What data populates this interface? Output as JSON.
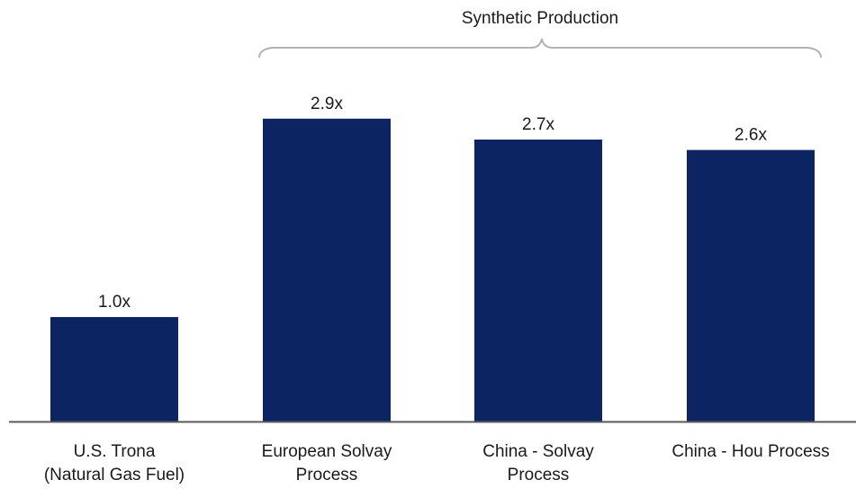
{
  "chart_data": {
    "type": "bar",
    "categories": [
      [
        "U.S. Trona",
        "(Natural Gas Fuel)"
      ],
      [
        "European Solvay",
        "Process"
      ],
      [
        "China - Solvay",
        "Process"
      ],
      [
        "China - Hou Process"
      ]
    ],
    "values": [
      1.0,
      2.9,
      2.7,
      2.6
    ],
    "data_labels": [
      "1.0x",
      "2.9x",
      "2.7x",
      "2.6x"
    ],
    "bar_color": "#0d2463",
    "axis_color": "#5a5a5a",
    "bracket_color": "#b3b3b3",
    "group": {
      "label": "Synthetic Production",
      "first_index": 1,
      "last_index": 3
    },
    "ylim": [
      0,
      3.45
    ]
  }
}
